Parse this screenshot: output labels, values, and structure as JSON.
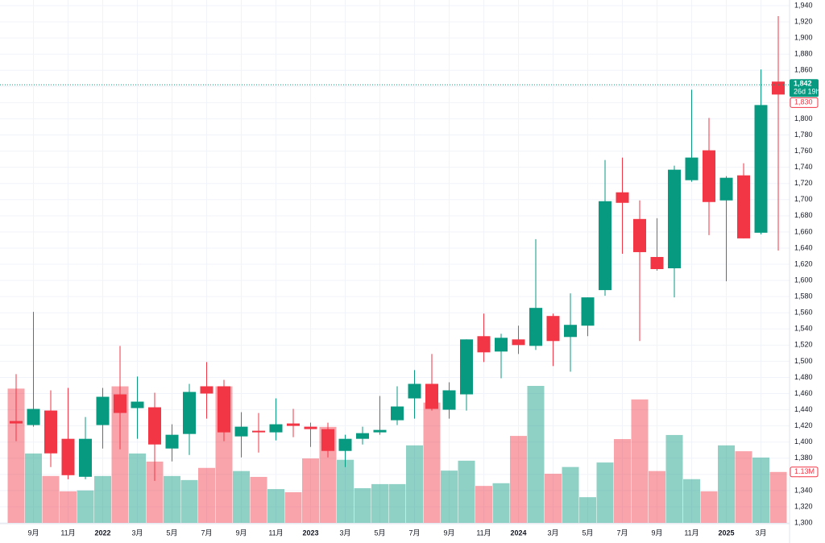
{
  "chart_data": {
    "type": "candlestick",
    "categories": [
      null,
      "9月",
      null,
      "11月",
      null,
      "2022",
      null,
      "3月",
      null,
      "5月",
      null,
      "7月",
      null,
      "9月",
      null,
      "11月",
      null,
      "2023",
      null,
      "3月",
      null,
      "5月",
      null,
      "7月",
      null,
      "9月",
      null,
      "11月",
      null,
      "2024",
      null,
      "3月",
      null,
      "5月",
      null,
      "7月",
      null,
      "9月",
      null,
      "11月",
      null,
      "2025",
      null,
      "3月",
      null
    ],
    "open": [
      1426,
      1421,
      1439,
      1404,
      1357,
      1421,
      1459,
      1442,
      1443,
      1392,
      1410,
      1469,
      1469,
      1407,
      1414,
      1412,
      1423,
      1419,
      1416,
      1389,
      1404,
      1412,
      1427,
      1454,
      1472,
      1440,
      1459,
      1531,
      1512,
      1527,
      1519,
      1556,
      1530,
      1544,
      1588,
      1709,
      1676,
      1629,
      1615,
      1724,
      1761,
      1699,
      1730,
      1659,
      1846
    ],
    "high": [
      1484,
      1561,
      1464,
      1467,
      1431,
      1467,
      1519,
      1481,
      1461,
      1422,
      1472,
      1499,
      1477,
      1437,
      1436,
      1454,
      1441,
      1424,
      1424,
      1409,
      1419,
      1457,
      1469,
      1489,
      1509,
      1474,
      1527,
      1559,
      1534,
      1544,
      1651,
      1559,
      1584,
      1579,
      1749,
      1752,
      1699,
      1677,
      1742,
      1836,
      1801,
      1729,
      1745,
      1861,
      1927
    ],
    "low": [
      1401,
      1419,
      1369,
      1354,
      1354,
      1392,
      1391,
      1404,
      1352,
      1376,
      1384,
      1429,
      1401,
      1381,
      1387,
      1402,
      1406,
      1394,
      1381,
      1369,
      1397,
      1409,
      1421,
      1429,
      1439,
      1429,
      1439,
      1499,
      1479,
      1509,
      1514,
      1494,
      1487,
      1531,
      1581,
      1633,
      1525,
      1612,
      1579,
      1722,
      1656,
      1599,
      1652,
      1657,
      1637
    ],
    "close": [
      1423,
      1441,
      1386,
      1359,
      1404,
      1456,
      1436,
      1450,
      1397,
      1409,
      1462,
      1460,
      1412,
      1419,
      1412,
      1422,
      1420,
      1416,
      1389,
      1404,
      1411,
      1415,
      1444,
      1472,
      1441,
      1464,
      1527,
      1511,
      1529,
      1520,
      1566,
      1525,
      1545,
      1579,
      1698,
      1696,
      1635,
      1614,
      1737,
      1752,
      1697,
      1727,
      1652,
      1817,
      1830
    ],
    "volume": [
      2.98,
      1.54,
      1.04,
      0.7,
      0.72,
      1.04,
      3.03,
      1.54,
      1.36,
      1.04,
      0.95,
      1.22,
      3.03,
      1.15,
      1.02,
      0.75,
      0.68,
      1.43,
      2.13,
      1.4,
      0.77,
      0.86,
      0.86,
      1.72,
      2.67,
      1.16,
      1.38,
      0.82,
      0.88,
      1.93,
      3.04,
      1.09,
      1.24,
      0.57,
      1.34,
      1.86,
      2.74,
      1.15,
      1.95,
      0.97,
      0.7,
      1.72,
      1.59,
      1.45,
      1.13
    ],
    "volume_last_label": "1.13M",
    "up_color": "#089981",
    "down_color": "#f23645",
    "ylim": [
      1300,
      1940
    ],
    "yticks": [
      {
        "value": 1300,
        "label": "1,300"
      },
      {
        "value": 1320,
        "label": "1,320"
      },
      {
        "value": 1340,
        "label": "1,340"
      },
      {
        "value": 1360,
        "label": "1,360"
      },
      {
        "value": 1380,
        "label": "1,380"
      },
      {
        "value": 1400,
        "label": "1,400"
      },
      {
        "value": 1420,
        "label": "1,420"
      },
      {
        "value": 1440,
        "label": "1,440"
      },
      {
        "value": 1460,
        "label": "1,460"
      },
      {
        "value": 1480,
        "label": "1,480"
      },
      {
        "value": 1500,
        "label": "1,500"
      },
      {
        "value": 1520,
        "label": "1,520"
      },
      {
        "value": 1540,
        "label": "1,540"
      },
      {
        "value": 1560,
        "label": "1,560"
      },
      {
        "value": 1580,
        "label": "1,580"
      },
      {
        "value": 1600,
        "label": "1,600"
      },
      {
        "value": 1620,
        "label": "1,620"
      },
      {
        "value": 1640,
        "label": "1,640"
      },
      {
        "value": 1660,
        "label": "1,660"
      },
      {
        "value": 1680,
        "label": "1,680"
      },
      {
        "value": 1700,
        "label": "1,700"
      },
      {
        "value": 1720,
        "label": "1,720"
      },
      {
        "value": 1740,
        "label": "1,740"
      },
      {
        "value": 1760,
        "label": "1,760"
      },
      {
        "value": 1780,
        "label": "1,780"
      },
      {
        "value": 1800,
        "label": "1,800"
      },
      {
        "value": 1820,
        "label": "1,820"
      },
      {
        "value": 1840,
        "label": "1,840"
      },
      {
        "value": 1860,
        "label": "1,860"
      },
      {
        "value": 1880,
        "label": "1,880"
      },
      {
        "value": 1900,
        "label": "1,900"
      },
      {
        "value": 1920,
        "label": "1,920"
      },
      {
        "value": 1940,
        "label": "1,940"
      }
    ],
    "last_price": {
      "value": 1842,
      "label": "1,842",
      "countdown": "26d 19h"
    },
    "close_price": {
      "value": 1830,
      "label": "1,830"
    },
    "grid": true
  }
}
